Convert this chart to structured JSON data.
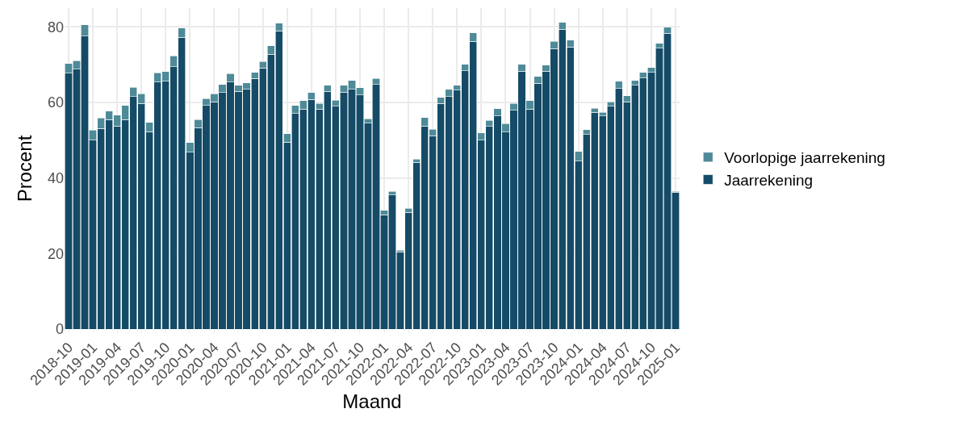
{
  "chart_data": {
    "type": "bar",
    "stacked": true,
    "xlabel": "Maand",
    "ylabel": "Procent",
    "categories": [
      "2018-10",
      null,
      null,
      "2019-01",
      null,
      null,
      "2019-04",
      null,
      null,
      "2019-07",
      null,
      null,
      "2019-10",
      null,
      null,
      "2020-01",
      null,
      null,
      "2020-04",
      null,
      null,
      "2020-07",
      null,
      null,
      "2020-10",
      null,
      null,
      "2021-01",
      null,
      null,
      "2021-04",
      null,
      null,
      "2021-07",
      null,
      null,
      "2021-10",
      null,
      null,
      "2022-01",
      null,
      null,
      "2022-04",
      null,
      null,
      "2022-07",
      null,
      null,
      "2022-10",
      null,
      null,
      "2023-01",
      null,
      null,
      "2023-04",
      null,
      null,
      "2023-07",
      null,
      null,
      "2023-10",
      null,
      null,
      "2024-01",
      null,
      null,
      "2024-04",
      null,
      null,
      "2024-07",
      null,
      null,
      "2024-10",
      null,
      null,
      "2025-01"
    ],
    "series": [
      {
        "name": "Jaarrekening",
        "color": "#154b66",
        "values": [
          67.8,
          68.8,
          77.6,
          50.0,
          53.1,
          55.5,
          53.8,
          55.5,
          61.6,
          59.7,
          52.3,
          65.4,
          65.6,
          69.5,
          77.3,
          46.8,
          53.3,
          59.2,
          60.2,
          62.6,
          65.4,
          63.0,
          63.5,
          66.4,
          69.1,
          72.8,
          79.0,
          49.5,
          57.1,
          58.2,
          60.8,
          58.2,
          63.0,
          59.0,
          62.7,
          63.5,
          62.0,
          54.5,
          64.8,
          30.3,
          35.5,
          20.4,
          30.9,
          44.2,
          53.8,
          51.2,
          59.7,
          61.6,
          63.3,
          68.4,
          76.2,
          50.0,
          53.7,
          56.4,
          52.2,
          57.9,
          68.3,
          58.2,
          65.1,
          68.3,
          74.3,
          79.4,
          74.7,
          44.5,
          51.5,
          57.4,
          56.4,
          59.0,
          63.7,
          60.2,
          64.6,
          66.5,
          68.0,
          74.4,
          78.3,
          36.3
        ]
      },
      {
        "name": "Voorlopige jaarrekening",
        "color": "#4f8a98",
        "values": [
          2.5,
          2.3,
          3.0,
          2.7,
          2.8,
          2.2,
          2.8,
          3.7,
          2.4,
          2.6,
          2.4,
          2.5,
          2.6,
          2.9,
          2.4,
          2.6,
          2.2,
          1.8,
          2.1,
          2.2,
          2.2,
          1.6,
          1.7,
          1.6,
          1.8,
          2.2,
          2.0,
          2.2,
          2.1,
          2.3,
          1.8,
          1.5,
          1.6,
          1.6,
          1.9,
          2.3,
          1.9,
          1.2,
          1.6,
          1.1,
          1.0,
          0.5,
          1.1,
          0.8,
          2.2,
          1.7,
          1.7,
          1.9,
          1.3,
          1.7,
          2.2,
          2.0,
          1.6,
          2.0,
          2.2,
          1.8,
          1.8,
          2.3,
          1.8,
          1.6,
          1.9,
          1.8,
          1.8,
          2.5,
          1.3,
          1.1,
          1.0,
          1.2,
          1.9,
          1.6,
          1.2,
          1.5,
          1.3,
          1.3,
          1.6,
          0.2
        ]
      }
    ],
    "ylim": [
      0,
      85
    ],
    "yticks": [
      0,
      20,
      40,
      60,
      80
    ],
    "grid": true,
    "legend": "right"
  }
}
